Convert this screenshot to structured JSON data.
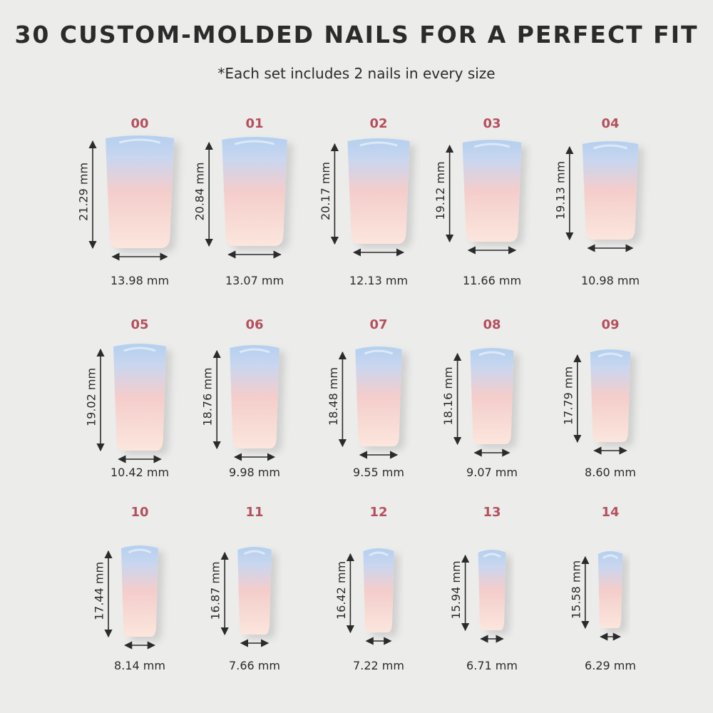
{
  "header": {
    "title": "30 CUSTOM-MOLDED NAILS FOR A PERFECT FIT",
    "subtitle": "*Each set includes 2 nails in every size"
  },
  "nails": [
    {
      "size": "00",
      "length": "21.29 mm",
      "width": "13.98 mm"
    },
    {
      "size": "01",
      "length": "20.84 mm",
      "width": "13.07 mm"
    },
    {
      "size": "02",
      "length": "20.17 mm",
      "width": "12.13 mm"
    },
    {
      "size": "03",
      "length": "19.12 mm",
      "width": "11.66 mm"
    },
    {
      "size": "04",
      "length": "19.13 mm",
      "width": "10.98 mm"
    },
    {
      "size": "05",
      "length": "19.02 mm",
      "width": "10.42 mm"
    },
    {
      "size": "06",
      "length": "18.76 mm",
      "width": "9.98 mm"
    },
    {
      "size": "07",
      "length": "18.48 mm",
      "width": "9.55 mm"
    },
    {
      "size": "08",
      "length": "18.16 mm",
      "width": "9.07 mm"
    },
    {
      "size": "09",
      "length": "17.79 mm",
      "width": "8.60 mm"
    },
    {
      "size": "10",
      "length": "17.44 mm",
      "width": "8.14 mm"
    },
    {
      "size": "11",
      "length": "16.87 mm",
      "width": "7.66 mm"
    },
    {
      "size": "12",
      "length": "16.42 mm",
      "width": "7.22 mm"
    },
    {
      "size": "13",
      "length": "15.94 mm",
      "width": "6.71 mm"
    },
    {
      "size": "14",
      "length": "15.58 mm",
      "width": "6.29 mm"
    }
  ]
}
